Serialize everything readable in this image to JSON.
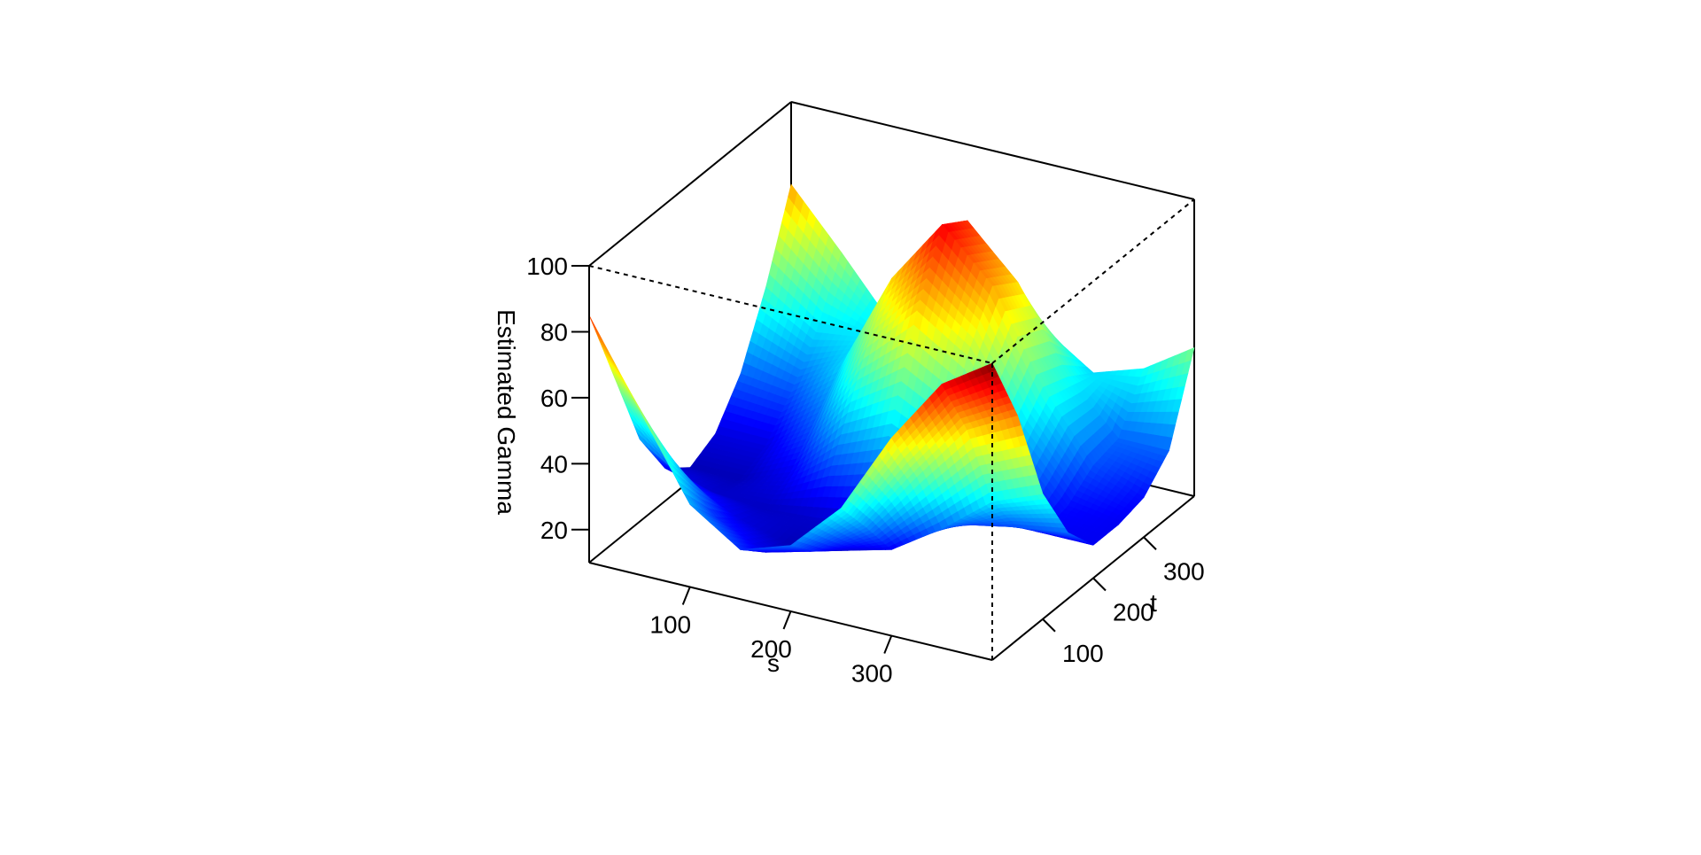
{
  "chart_data": {
    "type": "surface3d",
    "title": "",
    "xlabel": "s",
    "ylabel": "t",
    "zlabel": "Estimated Gamma",
    "xlim": [
      0,
      400
    ],
    "ylim": [
      0,
      400
    ],
    "zlim": [
      10,
      100
    ],
    "x_ticks": [
      "100",
      "200",
      "300"
    ],
    "y_ticks": [
      "100",
      "200",
      "300"
    ],
    "z_ticks": [
      "20",
      "40",
      "60",
      "80",
      "100"
    ],
    "colormap": [
      "#00008f",
      "#0000ff",
      "#0080ff",
      "#00ffff",
      "#80ff80",
      "#ffff00",
      "#ff8000",
      "#ff0000",
      "#800000"
    ],
    "grid": false,
    "legend": "none",
    "x": [
      0,
      50,
      100,
      150,
      200,
      250,
      300,
      350,
      400
    ],
    "y": [
      0,
      50,
      100,
      150,
      200,
      250,
      300,
      350,
      400
    ],
    "z": [
      [
        85,
        60,
        35,
        25,
        30,
        45,
        70,
        90,
        100
      ],
      [
        60,
        42,
        25,
        18,
        22,
        33,
        52,
        70,
        78
      ],
      [
        35,
        25,
        18,
        14,
        16,
        20,
        30,
        42,
        48
      ],
      [
        20,
        16,
        15,
        16,
        18,
        22,
        25,
        28,
        30
      ],
      [
        14,
        14,
        20,
        35,
        42,
        35,
        24,
        20,
        20
      ],
      [
        18,
        18,
        30,
        55,
        70,
        60,
        38,
        22,
        20
      ],
      [
        30,
        28,
        40,
        70,
        90,
        75,
        48,
        28,
        22
      ],
      [
        50,
        40,
        42,
        65,
        85,
        70,
        45,
        30,
        30
      ],
      [
        75,
        58,
        40,
        45,
        60,
        50,
        40,
        45,
        55
      ]
    ]
  }
}
